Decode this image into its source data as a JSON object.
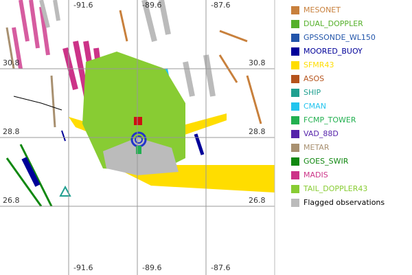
{
  "map": {
    "axis_labels": {
      "top": [
        "-91.6",
        "-89.6",
        "-87.6"
      ],
      "bottom": [
        "-91.6",
        "-89.6",
        "-87.6"
      ],
      "left": [
        "30.8",
        "28.8",
        "26.8"
      ],
      "right": [
        "30.8",
        "28.8",
        "26.8"
      ]
    },
    "legend": [
      {
        "label": "MESONET",
        "color": "#c8803c",
        "text_color": "#c8803c"
      },
      {
        "label": "DUAL_DOPPLER",
        "color": "#55b02a",
        "text_color": "#55b02a"
      },
      {
        "label": "GPSSONDE_WL150",
        "color": "#2255aa",
        "text_color": "#2255aa"
      },
      {
        "label": "MOORED_BUOY",
        "color": "#000099",
        "text_color": "#000099"
      },
      {
        "label": "SFMR43",
        "color": "#ffdd00",
        "text_color": "#ffdd00"
      },
      {
        "label": "ASOS",
        "color": "#b5531c",
        "text_color": "#b5531c"
      },
      {
        "label": "SHIP",
        "color": "#20a090",
        "text_color": "#20a090"
      },
      {
        "label": "CMAN",
        "color": "#22c4ee",
        "text_color": "#22c4ee"
      },
      {
        "label": "FCMP_TOWER",
        "color": "#22b050",
        "text_color": "#22b050"
      },
      {
        "label": "VAD_88D",
        "color": "#5522aa",
        "text_color": "#5522aa"
      },
      {
        "label": "METAR",
        "color": "#a89070",
        "text_color": "#a89070"
      },
      {
        "label": "GOES_SWIR",
        "color": "#118811",
        "text_color": "#118811"
      },
      {
        "label": "MADIS",
        "color": "#cc3388",
        "text_color": "#cc3388"
      },
      {
        "label": "TAIL_DOPPLER43",
        "color": "#88cc33",
        "text_color": "#88cc33"
      },
      {
        "label": "Flagged observations",
        "color": "#bbbbbb",
        "text_color": "#000000"
      }
    ]
  }
}
